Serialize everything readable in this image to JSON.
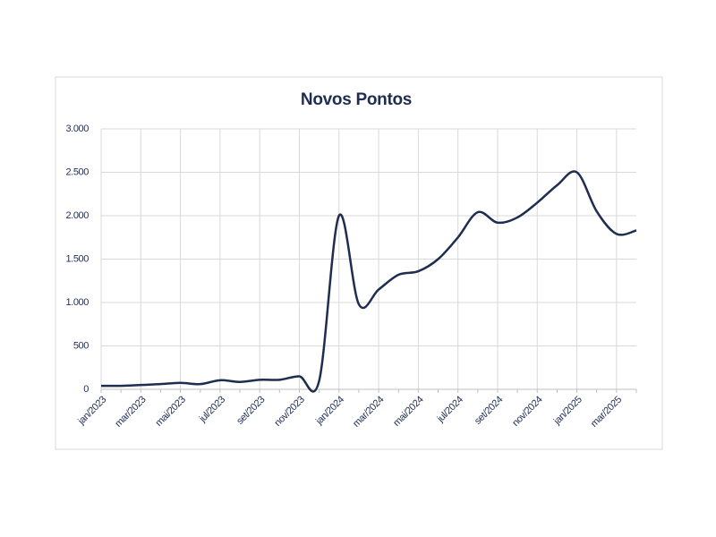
{
  "chart_data": {
    "type": "line",
    "title": "Novos Pontos",
    "categories": [
      "jan/2023",
      null,
      "mar/2023",
      null,
      "mai/2023",
      null,
      "jul/2023",
      null,
      "set/2023",
      null,
      "nov/2023",
      null,
      "jan/2024",
      null,
      "mar/2024",
      null,
      "mai/2024",
      null,
      "jul/2024",
      null,
      "set/2024",
      null,
      "nov/2024",
      null,
      "jan/2025",
      null,
      "mar/2025",
      null
    ],
    "series": [
      {
        "name": "Novos Pontos",
        "color": "#1f2d50",
        "values": [
          40,
          40,
          50,
          60,
          75,
          60,
          105,
          85,
          110,
          110,
          150,
          100,
          2000,
          980,
          1150,
          1320,
          1360,
          1500,
          1750,
          2040,
          1920,
          1980,
          2150,
          2350,
          2500,
          2050,
          1790,
          1830
        ]
      }
    ],
    "ylim": [
      0,
      3000
    ],
    "yticks": [
      0,
      500,
      {
        "value": 1000,
        "label": "1.000"
      },
      {
        "value": 1500,
        "label": "1.500"
      },
      {
        "value": 2000,
        "label": "2.000"
      },
      {
        "value": 2500,
        "label": "2.500"
      },
      {
        "value": 3000,
        "label": "3.000"
      }
    ],
    "grid": true
  }
}
